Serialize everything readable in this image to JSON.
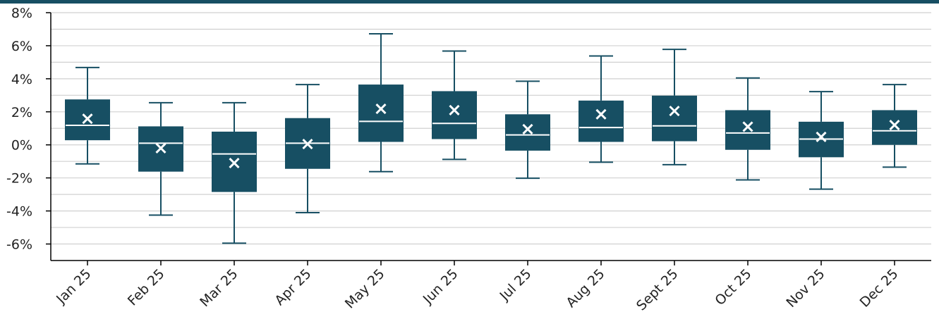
{
  "colors": {
    "accent": "#174f63",
    "grid": "#d0d0d0",
    "axis": "#000000",
    "box_line": "#ffffff"
  },
  "chart_data": {
    "type": "box",
    "title": "",
    "xlabel": "",
    "ylabel": "",
    "ylim": [
      -0.07,
      0.08
    ],
    "yticks": [
      -0.06,
      -0.04,
      -0.02,
      0,
      0.02,
      0.04,
      0.06,
      0.08
    ],
    "ytick_labels": [
      "-6%",
      "-4%",
      "-2%",
      "0%",
      "2%",
      "4%",
      "6%",
      "8%"
    ],
    "grid_minor_step": 0.01,
    "categories": [
      "Jan 25",
      "Feb 25",
      "Mar 25",
      "Apr 25",
      "May 25",
      "Jun 25",
      "Jul 25",
      "Aug 25",
      "Sept 25",
      "Oct 25",
      "Nov 25",
      "Dec 25"
    ],
    "boxes": [
      {
        "min": -0.0115,
        "q1": 0.0028,
        "median": 0.0118,
        "q3": 0.0275,
        "max": 0.0468,
        "mean": 0.0158
      },
      {
        "min": -0.0425,
        "q1": -0.0162,
        "median": 0.001,
        "q3": 0.0112,
        "max": 0.0255,
        "mean": -0.002
      },
      {
        "min": -0.0595,
        "q1": -0.0285,
        "median": -0.0055,
        "q3": 0.008,
        "max": 0.0255,
        "mean": -0.011
      },
      {
        "min": -0.041,
        "q1": -0.0145,
        "median": 0.001,
        "q3": 0.0162,
        "max": 0.0365,
        "mean": 0.0005
      },
      {
        "min": -0.0162,
        "q1": 0.0018,
        "median": 0.0142,
        "q3": 0.0365,
        "max": 0.0672,
        "mean": 0.0218
      },
      {
        "min": -0.0088,
        "q1": 0.0035,
        "median": 0.013,
        "q3": 0.0325,
        "max": 0.0568,
        "mean": 0.021
      },
      {
        "min": -0.0202,
        "q1": -0.0035,
        "median": 0.006,
        "q3": 0.0185,
        "max": 0.0385,
        "mean": 0.0095
      },
      {
        "min": -0.0105,
        "q1": 0.0018,
        "median": 0.0105,
        "q3": 0.0268,
        "max": 0.0538,
        "mean": 0.0185
      },
      {
        "min": -0.012,
        "q1": 0.0022,
        "median": 0.0115,
        "q3": 0.0298,
        "max": 0.0578,
        "mean": 0.0205
      },
      {
        "min": -0.0212,
        "q1": -0.003,
        "median": 0.0072,
        "q3": 0.021,
        "max": 0.0405,
        "mean": 0.011
      },
      {
        "min": -0.0268,
        "q1": -0.0075,
        "median": 0.0035,
        "q3": 0.014,
        "max": 0.0322,
        "mean": 0.0048
      },
      {
        "min": -0.0135,
        "q1": 0.0,
        "median": 0.0085,
        "q3": 0.021,
        "max": 0.0365,
        "mean": 0.012
      }
    ]
  }
}
